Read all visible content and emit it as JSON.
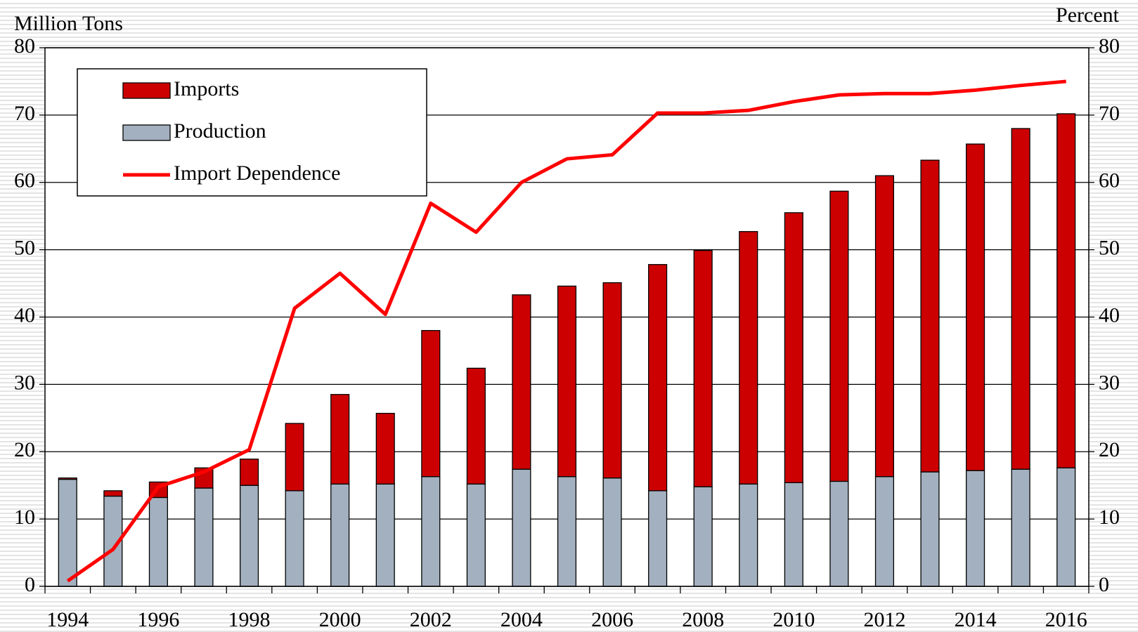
{
  "chart_data": {
    "type": "bar",
    "y_label": "Million Tons",
    "y2_label": "Percent",
    "categories": [
      "1994",
      null,
      "1996",
      null,
      "1998",
      null,
      "2000",
      null,
      "2002",
      null,
      "2004",
      null,
      "2006",
      null,
      "2008",
      null,
      "2010",
      null,
      "2012",
      null,
      "2014",
      null,
      "2016"
    ],
    "series": [
      {
        "name": "Imports",
        "type": "bar",
        "color": "#cc0000",
        "values": [
          0.2,
          0.8,
          2.3,
          3.0,
          3.9,
          10.0,
          13.3,
          10.5,
          21.7,
          17.2,
          25.9,
          28.3,
          29.0,
          33.6,
          35.1,
          37.5,
          40.1,
          43.1,
          44.7,
          46.3,
          48.5,
          50.6,
          52.6
        ]
      },
      {
        "name": "Production",
        "type": "bar",
        "color": "#a3b0bf",
        "values": [
          15.9,
          13.4,
          13.2,
          14.6,
          15.0,
          14.2,
          15.2,
          15.2,
          16.3,
          15.2,
          17.4,
          16.3,
          16.1,
          14.2,
          14.8,
          15.2,
          15.4,
          15.6,
          16.3,
          17.0,
          17.2,
          17.4,
          17.6
        ]
      },
      {
        "name": "Import Dependence",
        "type": "line",
        "axis": "y2",
        "color": "#ff0000",
        "values": [
          0.8,
          5.5,
          14.8,
          17.0,
          20.3,
          41.3,
          46.5,
          40.4,
          56.9,
          52.6,
          60.0,
          63.5,
          64.1,
          70.3,
          70.3,
          70.7,
          72.0,
          73.0,
          73.2,
          73.2,
          73.7,
          74.4,
          75.0
        ]
      }
    ],
    "stacked": true,
    "ylim": [
      0,
      80
    ],
    "yticks": [
      0,
      10,
      20,
      30,
      40,
      50,
      60,
      70,
      80
    ],
    "y2lim": [
      0,
      80
    ],
    "y2ticks": [
      0,
      10,
      20,
      30,
      40,
      50,
      60,
      70,
      80
    ],
    "grid": true,
    "legend": "upper left"
  }
}
